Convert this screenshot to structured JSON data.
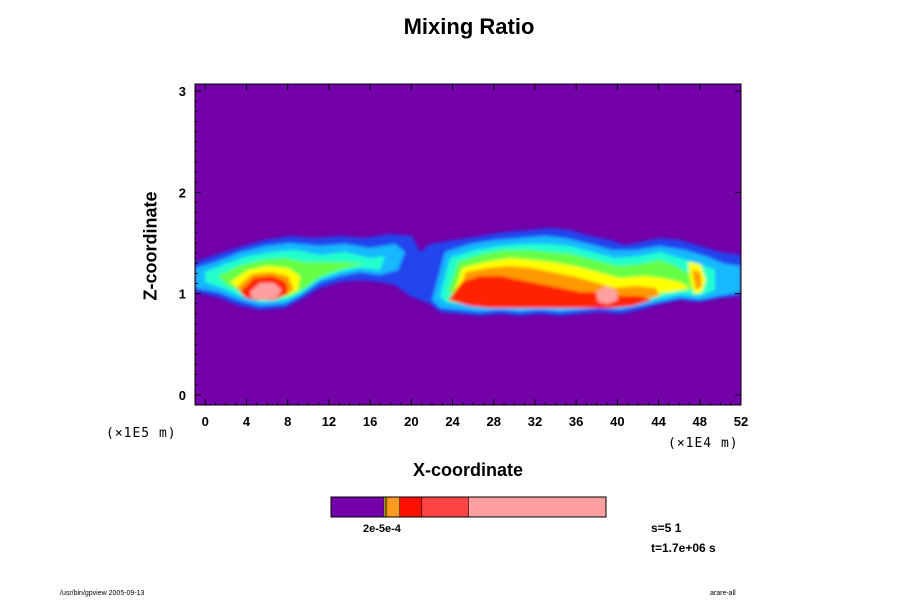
{
  "chart_data": {
    "type": "heatmap",
    "title": "Mixing Ratio",
    "xlabel": "X-coordinate",
    "ylabel": "Z-coordinate",
    "x_unit": "(×1E4 m)",
    "y_unit": "(×1E5 m)",
    "xlim": [
      -1,
      52
    ],
    "ylim": [
      -0.1,
      3.07
    ],
    "x_ticks": [
      0,
      4,
      8,
      12,
      16,
      20,
      24,
      28,
      32,
      36,
      40,
      44,
      48,
      52
    ],
    "y_ticks": [
      0,
      1,
      2,
      3
    ],
    "background_color": "#7300a8",
    "level_colors": [
      "#7300a8",
      "#2244ee",
      "#19a0ff",
      "#22ffee",
      "#55ff55",
      "#ccff22",
      "#ffff00",
      "#ff9900",
      "#ff2200",
      "#ff4444",
      "#ffa0a0"
    ],
    "colorbar": {
      "segments": [
        {
          "from": 0.0,
          "to": 0.193,
          "color": "#7300a8"
        },
        {
          "from": 0.193,
          "to": 0.198,
          "color": "#ffff00"
        },
        {
          "from": 0.198,
          "to": 0.203,
          "color": "#ffcc00"
        },
        {
          "from": 0.203,
          "to": 0.25,
          "color": "#ff9922"
        },
        {
          "from": 0.25,
          "to": 0.33,
          "color": "#ff1100"
        },
        {
          "from": 0.33,
          "to": 0.5,
          "color": "#ff4444"
        },
        {
          "from": 0.5,
          "to": 1.0,
          "color": "#ffa0a0"
        }
      ],
      "label": "2e-5e-4"
    },
    "step_label": "s=5 1",
    "time_label": "t=1.7e+06 s"
  },
  "footer": {
    "left": "/usr/bin/gpview 2005-09-13",
    "right": "arare-all"
  }
}
